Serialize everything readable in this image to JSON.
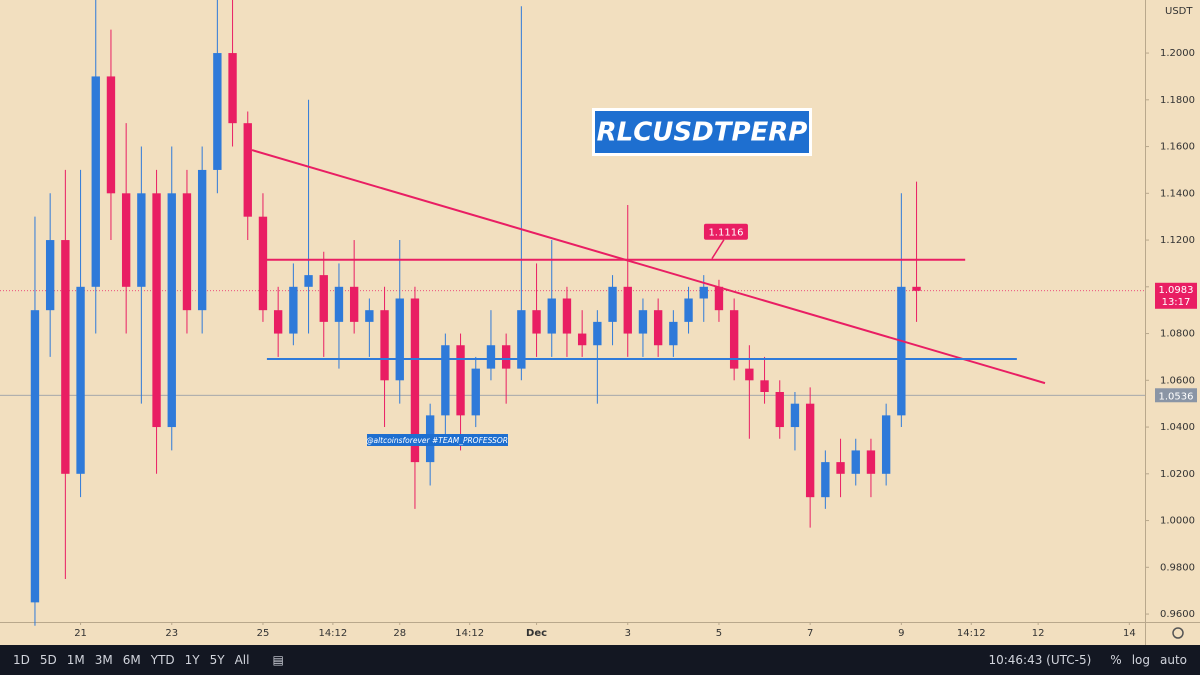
{
  "chart_data": {
    "type": "candlestick",
    "title": "RLCUSDTPERP",
    "currency": "USDT",
    "watermark": "@altcoinsforever #TEAM_PROFESSOR",
    "up_color": "#2f7ad9",
    "down_color": "#e91e63",
    "xlim": [
      -2.3,
      73.03
    ],
    "xticks": [
      {
        "value": 3,
        "label": "21"
      },
      {
        "value": 9,
        "label": "23"
      },
      {
        "value": 15,
        "label": "25"
      },
      {
        "value": 19.6,
        "label": "14:12"
      },
      {
        "value": 24,
        "label": "28"
      },
      {
        "value": 28.6,
        "label": "14:12"
      },
      {
        "value": 33,
        "label": "Dec"
      },
      {
        "value": 39,
        "label": "3"
      },
      {
        "value": 45,
        "label": "5"
      },
      {
        "value": 51,
        "label": "7"
      },
      {
        "value": 57,
        "label": "9"
      },
      {
        "value": 61.6,
        "label": "14:12"
      },
      {
        "value": 66,
        "label": "12"
      },
      {
        "value": 72,
        "label": "14"
      }
    ],
    "ylim": [
      0.9566,
      1.2227
    ],
    "yticks": [
      {
        "value": 0.96,
        "label": "0.9600"
      },
      {
        "value": 0.98,
        "label": "0.9800"
      },
      {
        "value": 1.0,
        "label": "1.0000"
      },
      {
        "value": 1.02,
        "label": "1.0200"
      },
      {
        "value": 1.04,
        "label": "1.0400"
      },
      {
        "value": 1.06,
        "label": "1.0600"
      },
      {
        "value": 1.08,
        "label": "1.0800"
      },
      {
        "value": 1.1,
        "label": "1.1000"
      },
      {
        "value": 1.12,
        "label": "1.1200"
      },
      {
        "value": 1.14,
        "label": "1.1400"
      },
      {
        "value": 1.16,
        "label": "1.1600"
      },
      {
        "value": 1.18,
        "label": "1.1800"
      },
      {
        "value": 1.2,
        "label": "1.2000"
      }
    ],
    "open": [
      0.965,
      1.09,
      1.12,
      1.02,
      1.1,
      1.19,
      1.14,
      1.1,
      1.14,
      1.04,
      1.14,
      1.09,
      1.15,
      1.2,
      1.17,
      1.13,
      1.09,
      1.08,
      1.1,
      1.105,
      1.085,
      1.1,
      1.085,
      1.09,
      1.06,
      1.095,
      1.025,
      1.045,
      1.075,
      1.045,
      1.065,
      1.075,
      1.065,
      1.09,
      1.08,
      1.095,
      1.08,
      1.075,
      1.085,
      1.1,
      1.08,
      1.09,
      1.075,
      1.085,
      1.095,
      1.1,
      1.09,
      1.065,
      1.06,
      1.055,
      1.04,
      1.05,
      1.01,
      1.025,
      1.02,
      1.03,
      1.02,
      1.045,
      1.1
    ],
    "high": [
      1.13,
      1.14,
      1.15,
      1.15,
      1.225,
      1.21,
      1.17,
      1.16,
      1.15,
      1.16,
      1.15,
      1.16,
      1.225,
      1.225,
      1.175,
      1.14,
      1.1,
      1.11,
      1.18,
      1.115,
      1.11,
      1.12,
      1.095,
      1.1,
      1.12,
      1.1,
      1.05,
      1.08,
      1.08,
      1.07,
      1.09,
      1.08,
      1.22,
      1.11,
      1.12,
      1.1,
      1.09,
      1.09,
      1.105,
      1.135,
      1.095,
      1.095,
      1.09,
      1.1,
      1.105,
      1.103,
      1.095,
      1.075,
      1.07,
      1.06,
      1.055,
      1.057,
      1.03,
      1.035,
      1.035,
      1.035,
      1.05,
      1.14,
      1.145
    ],
    "low": [
      0.955,
      1.07,
      0.975,
      1.01,
      1.08,
      1.12,
      1.08,
      1.05,
      1.02,
      1.03,
      1.08,
      1.08,
      1.14,
      1.16,
      1.12,
      1.085,
      1.07,
      1.075,
      1.08,
      1.07,
      1.065,
      1.08,
      1.07,
      1.04,
      1.05,
      1.005,
      1.015,
      1.035,
      1.03,
      1.04,
      1.06,
      1.05,
      1.06,
      1.07,
      1.07,
      1.07,
      1.07,
      1.05,
      1.075,
      1.07,
      1.07,
      1.07,
      1.07,
      1.08,
      1.085,
      1.085,
      1.06,
      1.035,
      1.05,
      1.035,
      1.03,
      0.997,
      1.005,
      1.01,
      1.015,
      1.01,
      1.015,
      1.04,
      1.085
    ],
    "close": [
      1.09,
      1.12,
      1.02,
      1.1,
      1.19,
      1.14,
      1.1,
      1.14,
      1.04,
      1.14,
      1.09,
      1.15,
      1.2,
      1.17,
      1.13,
      1.09,
      1.08,
      1.1,
      1.105,
      1.085,
      1.1,
      1.085,
      1.09,
      1.06,
      1.095,
      1.025,
      1.045,
      1.075,
      1.045,
      1.065,
      1.075,
      1.065,
      1.09,
      1.08,
      1.095,
      1.08,
      1.075,
      1.085,
      1.1,
      1.08,
      1.09,
      1.075,
      1.085,
      1.095,
      1.1,
      1.09,
      1.065,
      1.06,
      1.055,
      1.04,
      1.05,
      1.01,
      1.025,
      1.02,
      1.03,
      1.02,
      1.045,
      1.1,
      1.0983
    ],
    "lines": [
      {
        "color": "#e91e63",
        "x": [
          14.28,
          66.45
        ],
        "y": [
          1.1585,
          1.0588
        ]
      },
      {
        "color": "#e91e63",
        "x": [
          15.1,
          61.2
        ],
        "y": [
          1.1116,
          1.1116
        ],
        "label": "1.1116"
      },
      {
        "color": "#2f7ad9",
        "x": [
          15.26,
          64.6
        ],
        "y": [
          1.0691,
          1.0691
        ]
      }
    ],
    "last_price": 1.0983,
    "countdown": "13:17",
    "price_line": 1.0536
  },
  "toolbar": {
    "ranges": [
      "1D",
      "5D",
      "1M",
      "3M",
      "6M",
      "YTD",
      "1Y",
      "5Y",
      "All"
    ],
    "clock": "10:46:43 (UTC-5)",
    "percent": "%",
    "log": "log",
    "auto": "auto"
  }
}
